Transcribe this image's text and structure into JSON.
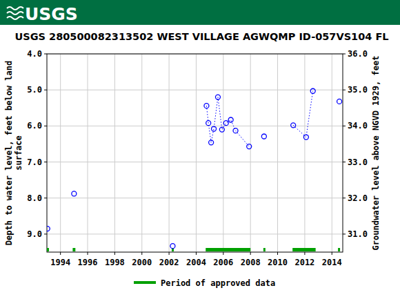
{
  "chart_data": {
    "type": "scatter",
    "logo_text": "USGS",
    "title": "USGS 280500082313502 WEST VILLAGE AGWQMP ID-057VS104 FL",
    "y_label": [
      "Depth to water level, feet below land",
      "surface"
    ],
    "y2_label": "Groundwater level above NGVD 1929, feet",
    "xlim": [
      1993.0,
      2014.8
    ],
    "xticks": [
      1994,
      1996,
      1998,
      2000,
      2002,
      2004,
      2006,
      2008,
      2010,
      2012,
      2014
    ],
    "ylim": [
      4.0,
      9.5
    ],
    "yticks": [
      {
        "value": 4,
        "label": "4.0"
      },
      {
        "value": 5,
        "label": "5.0"
      },
      {
        "value": 6,
        "label": "6.0"
      },
      {
        "value": 7,
        "label": "7.0"
      },
      {
        "value": 8,
        "label": "8.0"
      },
      {
        "value": 9,
        "label": "9.0"
      }
    ],
    "y2lim": [
      36.0,
      30.5
    ],
    "y2ticks": [
      {
        "value": 36,
        "label": "36.0"
      },
      {
        "value": 35,
        "label": "35.0"
      },
      {
        "value": 34,
        "label": "34.0"
      },
      {
        "value": 33,
        "label": "33.0"
      },
      {
        "value": 32,
        "label": "32.0"
      },
      {
        "value": 31,
        "label": "31.0"
      }
    ],
    "grid": true,
    "series": [
      {
        "name": "Depth to water level",
        "color": "#0000ff",
        "marker": "open-circle",
        "line_style": "dotted",
        "x": [
          1993.04,
          null,
          1995.0,
          null,
          2002.27,
          null,
          2004.76,
          2004.9,
          2005.1,
          2005.3,
          2005.6,
          2005.9,
          2006.2,
          2006.55,
          2006.9,
          2007.9,
          null,
          2009.0,
          null,
          2011.15,
          2012.1,
          2012.6,
          null,
          2014.55
        ],
        "values": [
          8.85,
          null,
          7.88,
          null,
          9.33,
          null,
          5.44,
          5.92,
          6.46,
          6.08,
          5.2,
          6.1,
          5.92,
          5.83,
          6.13,
          6.57,
          null,
          6.29,
          null,
          5.98,
          6.31,
          5.03,
          null,
          5.32
        ]
      }
    ],
    "approved_periods": {
      "name": "Period of approved data",
      "color": "#00a000",
      "ranges": [
        [
          1993.0,
          1993.15
        ],
        [
          1994.9,
          1995.1
        ],
        [
          2002.2,
          2002.35
        ],
        [
          2004.7,
          2008.0
        ],
        [
          2008.95,
          2009.1
        ],
        [
          2011.1,
          2012.8
        ],
        [
          2014.45,
          2014.6
        ]
      ]
    }
  }
}
